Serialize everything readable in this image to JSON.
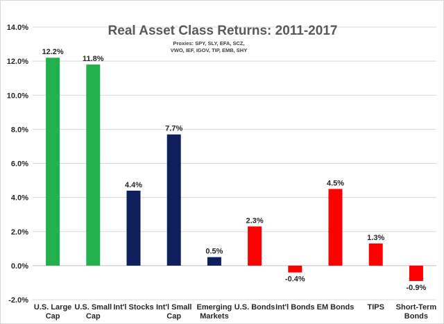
{
  "chart_data": {
    "type": "bar",
    "title": "Real Asset Class Returns: 2011-2017",
    "subtitle_lines": [
      "Proxies: SPY, SLY, EFA, SCZ,",
      "VWO, IEF, IGOV, TIP, EMB, SHY"
    ],
    "categories": [
      [
        "U.S. Large",
        "Cap"
      ],
      [
        "U.S. Small",
        "Cap"
      ],
      [
        "Int'l Stocks"
      ],
      [
        "Int'l Small",
        "Cap"
      ],
      [
        "Emerging",
        "Markets"
      ],
      [
        "U.S. Bonds"
      ],
      [
        "Int'l Bonds"
      ],
      [
        "EM Bonds"
      ],
      [
        "TIPS"
      ],
      [
        "Short-Term",
        "Bonds"
      ]
    ],
    "values": [
      12.2,
      11.8,
      4.4,
      7.7,
      0.5,
      2.3,
      -0.4,
      4.5,
      1.3,
      -0.9
    ],
    "value_labels": [
      "12.2%",
      "11.8%",
      "4.4%",
      "7.7%",
      "0.5%",
      "2.3%",
      "-0.4%",
      "4.5%",
      "1.3%",
      "-0.9%"
    ],
    "bar_colors": [
      "#22b14c",
      "#22b14c",
      "#0f1f5c",
      "#0f1f5c",
      "#0f1f5c",
      "#ff0000",
      "#ff0000",
      "#ff0000",
      "#ff0000",
      "#ff0000"
    ],
    "ylim": [
      -2.0,
      14.0
    ],
    "yticks": [
      "14.0%",
      "12.0%",
      "10.0%",
      "8.0%",
      "6.0%",
      "4.0%",
      "2.0%",
      "0.0%",
      "-2.0%"
    ],
    "ytick_values": [
      14,
      12,
      10,
      8,
      6,
      4,
      2,
      0,
      -2
    ],
    "grid": true,
    "legend": "none"
  }
}
